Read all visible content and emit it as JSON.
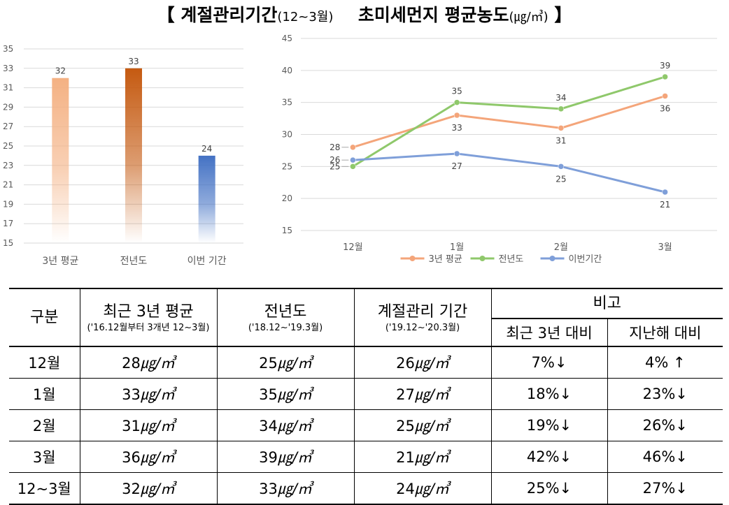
{
  "title": {
    "left_bracket": "【",
    "main1": "계절관리기간",
    "sub1": "(12~3월)",
    "main2": "초미세먼지  평균농도",
    "sub2": "(㎍/㎥)",
    "right_bracket": "】"
  },
  "chart_data": [
    {
      "type": "bar",
      "categories": [
        "3년 평균",
        "전년도",
        "이번 기간"
      ],
      "values": [
        32,
        33,
        24
      ],
      "data_labels": [
        "32",
        "33",
        "24"
      ],
      "ylim": [
        15,
        35
      ],
      "yticks": [
        "15",
        "17",
        "19",
        "21",
        "23",
        "25",
        "27",
        "29",
        "31",
        "33",
        "35"
      ],
      "colors": [
        "#F4B183",
        "#C55A11",
        "#4472C4"
      ],
      "grid": true
    },
    {
      "type": "line",
      "categories": [
        "12월",
        "1월",
        "2월",
        "3월"
      ],
      "ylim": [
        15,
        45
      ],
      "yticks": [
        "15",
        "20",
        "25",
        "30",
        "35",
        "40",
        "45"
      ],
      "grid": true,
      "legend_position": "bottom",
      "series": [
        {
          "name": "3년 평균",
          "values": [
            28,
            33,
            31,
            36
          ],
          "color": "#F4A57A"
        },
        {
          "name": "전년도",
          "values": [
            25,
            35,
            34,
            39
          ],
          "color": "#8FC86B"
        },
        {
          "name": "이번기간",
          "values": [
            26,
            27,
            25,
            21
          ],
          "color": "#7F9FD9"
        }
      ]
    }
  ],
  "table": {
    "headers": {
      "col1": "구분",
      "col2": "최근 3년 평균",
      "col2_sub": "('16.12월부터 3개년 12~3월)",
      "col3": "전년도",
      "col3_sub": "('18.12~'19.3월)",
      "col4": "계절관리 기간",
      "col4_sub": "('19.12~'20.3월)",
      "col5": "비고",
      "col5a": "최근 3년 대비",
      "col5b": "지난해 대비"
    },
    "unit": "㎍/㎥",
    "rows": [
      {
        "label": "12월",
        "avg3": "28",
        "prev": "25",
        "curr": "26",
        "vs3": "7%↓",
        "vsPrev": "4% ↑"
      },
      {
        "label": "1월",
        "avg3": "33",
        "prev": "35",
        "curr": "27",
        "vs3": "18%↓",
        "vsPrev": "23%↓"
      },
      {
        "label": "2월",
        "avg3": "31",
        "prev": "34",
        "curr": "25",
        "vs3": "19%↓",
        "vsPrev": "26%↓"
      },
      {
        "label": "3월",
        "avg3": "36",
        "prev": "39",
        "curr": "21",
        "vs3": "42%↓",
        "vsPrev": "46%↓"
      },
      {
        "label": "12~3월",
        "avg3": "32",
        "prev": "33",
        "curr": "24",
        "vs3": "25%↓",
        "vsPrev": "27%↓"
      }
    ]
  }
}
